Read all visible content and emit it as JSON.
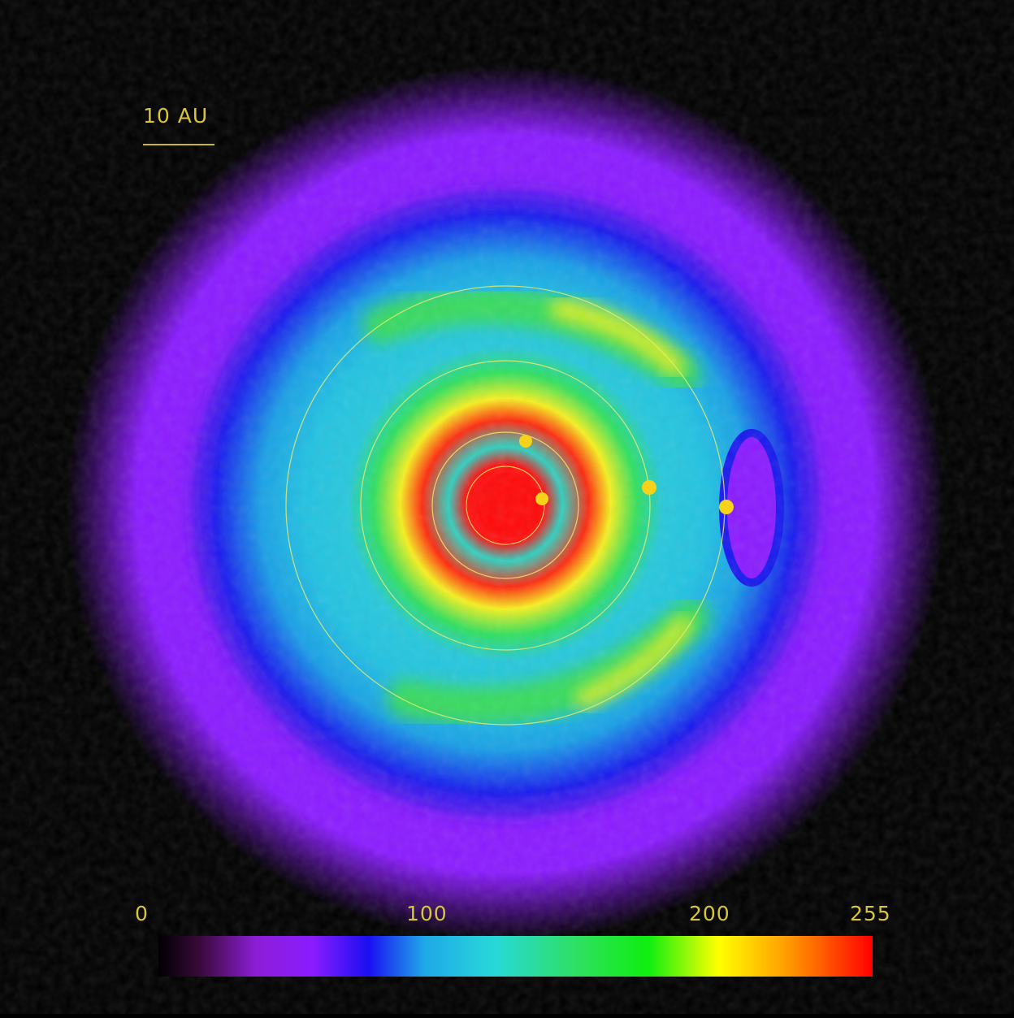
{
  "image": {
    "subject": "false-color density map of a disk with embedded planets",
    "scale_bar": {
      "label": "10 AU"
    },
    "colorbar": {
      "tick_labels": [
        "0",
        "100",
        "200",
        "255"
      ],
      "min": 0,
      "max": 255,
      "stops": [
        {
          "value": 0,
          "color": "#000000"
        },
        {
          "value": 15,
          "color": "#3a0a3a"
        },
        {
          "value": 35,
          "color": "#8c1ed6"
        },
        {
          "value": 55,
          "color": "#8a1cff"
        },
        {
          "value": 75,
          "color": "#1a10f0"
        },
        {
          "value": 95,
          "color": "#1fa8e8"
        },
        {
          "value": 120,
          "color": "#28d8d8"
        },
        {
          "value": 150,
          "color": "#2ee060"
        },
        {
          "value": 175,
          "color": "#10ee10"
        },
        {
          "value": 200,
          "color": "#ffff00"
        },
        {
          "value": 225,
          "color": "#ff9a00"
        },
        {
          "value": 255,
          "color": "#ff0000"
        }
      ]
    },
    "colors": {
      "background": "#000000",
      "label": "#d9c53a",
      "orbit": "#f0f06a",
      "planet": "#f7d21a"
    }
  }
}
